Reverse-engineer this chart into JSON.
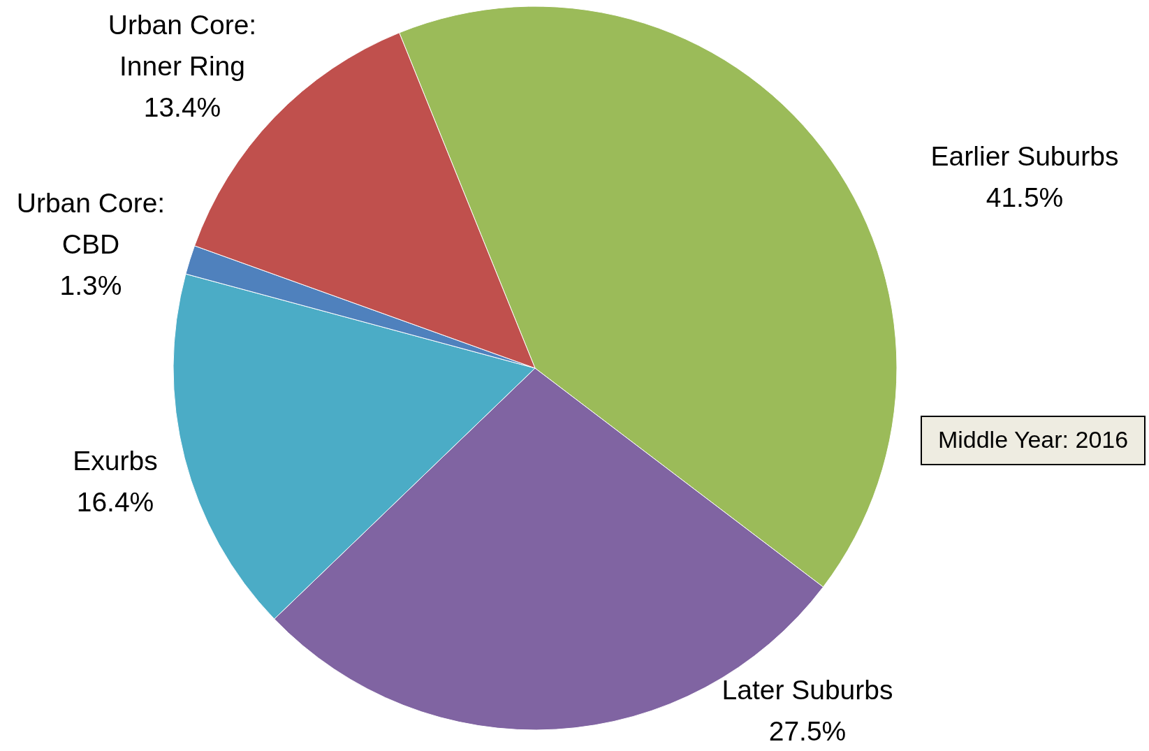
{
  "chart_data": {
    "type": "pie",
    "categories": [
      "Earlier Suburbs",
      "Later Suburbs",
      "Exurbs",
      "Urban Core: CBD",
      "Urban Core: Inner Ring"
    ],
    "values": [
      41.5,
      27.5,
      16.4,
      1.3,
      13.4
    ],
    "value_labels": [
      "41.5%",
      "27.5%",
      "16.4%",
      "1.3%",
      "13.4%"
    ],
    "colors": [
      "#9bbb59",
      "#8064a2",
      "#4bacc6",
      "#4f81bd",
      "#c0504d"
    ],
    "annotations": [
      "Middle Year: 2016"
    ]
  }
}
